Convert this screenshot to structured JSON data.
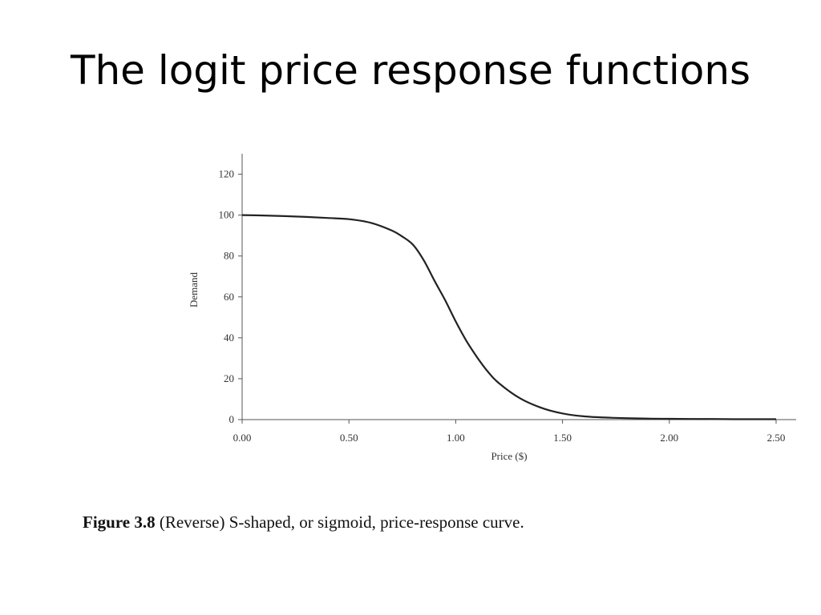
{
  "slide": {
    "title": "The logit price response functions",
    "caption": {
      "label": "Figure 3.8",
      "text": " (Reverse) S-shaped, or sigmoid, price-response curve."
    }
  },
  "chart_data": {
    "type": "line",
    "title": "",
    "xlabel": "Price ($)",
    "ylabel": "Demand",
    "xlim": [
      0,
      2.5
    ],
    "ylim": [
      0,
      130
    ],
    "x_ticks": [
      0,
      0.5,
      1.0,
      1.5,
      2.0,
      2.5
    ],
    "x_tick_labels": [
      "0.00",
      "0.50",
      "1.00",
      "1.50",
      "2.00",
      "2.50"
    ],
    "y_ticks": [
      0,
      20,
      40,
      60,
      80,
      100,
      120
    ],
    "y_tick_labels": [
      "0",
      "20",
      "40",
      "60",
      "80",
      "100",
      "120"
    ],
    "grid": false,
    "legend": "none",
    "series": [
      {
        "color": "#222222",
        "x": [
          0,
          0.1,
          0.2,
          0.3,
          0.4,
          0.5,
          0.6,
          0.7,
          0.75,
          0.8,
          0.85,
          0.9,
          0.95,
          1.0,
          1.05,
          1.1,
          1.15,
          1.2,
          1.3,
          1.4,
          1.5,
          1.6,
          1.7,
          1.8,
          1.9,
          2.0,
          2.1,
          2.2,
          2.3,
          2.4,
          2.5
        ],
        "y": [
          100,
          99.8,
          99.5,
          99.1,
          98.6,
          98.0,
          96.3,
          92.5,
          89.5,
          85.5,
          78.0,
          68.0,
          58.5,
          48.0,
          38.5,
          30.5,
          23.5,
          18.0,
          10.5,
          5.8,
          3.0,
          1.6,
          1.0,
          0.7,
          0.5,
          0.4,
          0.3,
          0.3,
          0.2,
          0.2,
          0.2
        ]
      }
    ]
  }
}
